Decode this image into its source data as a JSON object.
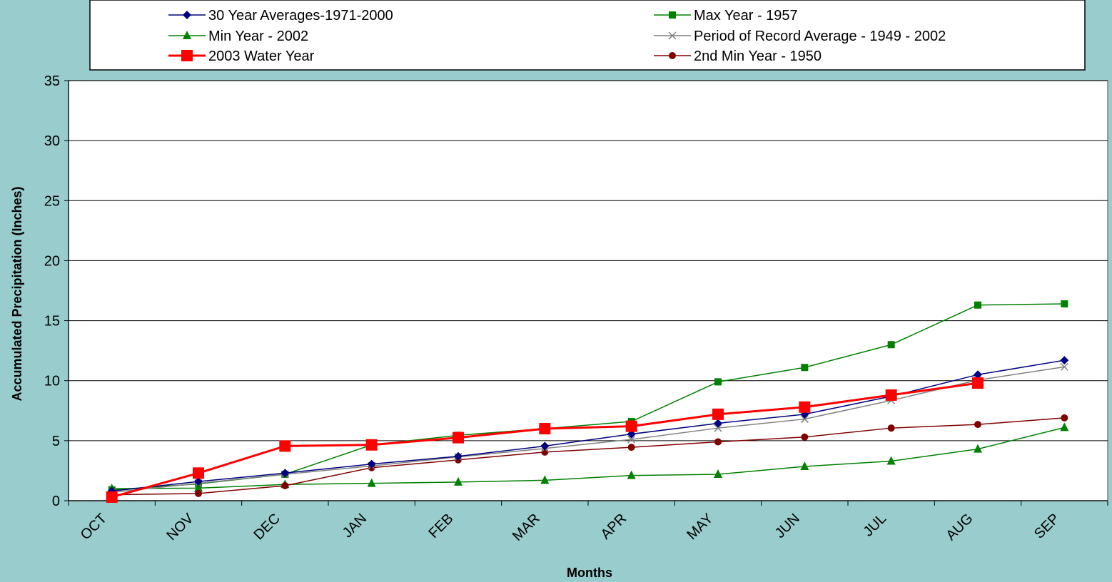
{
  "chart_data": {
    "type": "line",
    "title": "",
    "xlabel": "Months",
    "ylabel": "Accumulated Precipitation (Inches)",
    "ylim": [
      0,
      35
    ],
    "yticks": [
      0,
      5,
      10,
      15,
      20,
      25,
      30,
      35
    ],
    "grid": "horizontal",
    "legend_position": "top",
    "categories": [
      "OCT",
      "NOV",
      "DEC",
      "JAN",
      "FEB",
      "MAR",
      "APR",
      "MAY",
      "JUN",
      "JUL",
      "AUG",
      "SEP"
    ],
    "series": [
      {
        "name": "30 Year Averages-1971-2000",
        "color": "#000080",
        "marker": "diamond",
        "values": [
          0.8,
          1.6,
          2.3,
          3.05,
          3.7,
          4.55,
          5.55,
          6.45,
          7.2,
          8.7,
          10.5,
          11.7
        ]
      },
      {
        "name": "Max Year - 1957",
        "color": "#008000",
        "marker": "square",
        "values": [
          0.9,
          1.4,
          2.2,
          4.65,
          5.45,
          6.0,
          6.6,
          9.9,
          11.1,
          13.0,
          16.3,
          16.4
        ]
      },
      {
        "name": "Min Year - 2002",
        "color": "#008000",
        "marker": "triangle",
        "values": [
          1.0,
          1.05,
          1.35,
          1.45,
          1.55,
          1.7,
          2.1,
          2.2,
          2.85,
          3.3,
          4.3,
          6.1
        ]
      },
      {
        "name": "Period of Record Average - 1949 - 2002",
        "color": "#808080",
        "marker": "x",
        "values": [
          0.7,
          1.45,
          2.2,
          2.9,
          3.65,
          4.35,
          5.1,
          6.05,
          6.8,
          8.35,
          10.05,
          11.15
        ]
      },
      {
        "name": "2003 Water Year",
        "color": "#FF0000",
        "marker": "bigsquare",
        "values": [
          0.3,
          2.3,
          4.55,
          4.65,
          5.25,
          6.0,
          6.2,
          7.2,
          7.8,
          8.8,
          9.8,
          null
        ]
      },
      {
        "name": "2nd Min Year - 1950",
        "color": "#800000",
        "marker": "circle",
        "values": [
          0.5,
          0.6,
          1.25,
          2.75,
          3.4,
          4.05,
          4.45,
          4.9,
          5.3,
          6.05,
          6.35,
          6.9
        ]
      }
    ]
  }
}
